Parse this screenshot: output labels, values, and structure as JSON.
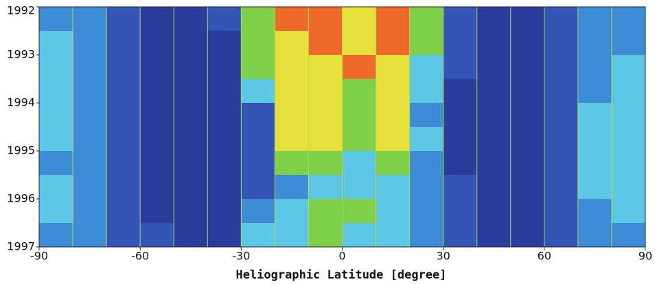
{
  "chart_data": {
    "type": "heatmap",
    "xlabel": "Heliographic Latitude [degree]",
    "xlim": [
      -90,
      90
    ],
    "xticks": [
      -90,
      -60,
      -30,
      0,
      30,
      60,
      90
    ],
    "xgrid": [
      -80,
      -70,
      -60,
      -50,
      -40,
      -30,
      -20,
      -10,
      0,
      10,
      20,
      30,
      40,
      50,
      60,
      70,
      80
    ],
    "grid_color": "#b9d84a",
    "ylim": [
      1997,
      1992
    ],
    "yticks": [
      1992,
      1993,
      1994,
      1995,
      1996,
      1997
    ],
    "xbins": [
      -90,
      -80,
      -70,
      -60,
      -50,
      -40,
      -30,
      -20,
      -10,
      0,
      10,
      20,
      30,
      40,
      50,
      60,
      70,
      80,
      90
    ],
    "ybins": [
      1992,
      1992.5,
      1993,
      1993.5,
      1994,
      1994.5,
      1995,
      1995.5,
      1996,
      1996.5,
      1997
    ],
    "colorscale": [
      "#2b3c9a",
      "#3356b6",
      "#3d8dd6",
      "#5cc8e6",
      "#7fd048",
      "#e6e03a",
      "#ef6a2a"
    ],
    "values": [
      [
        2,
        2,
        1,
        0,
        0,
        1,
        4,
        6,
        6,
        5,
        6,
        4,
        1,
        0,
        0,
        1,
        2,
        2
      ],
      [
        3,
        2,
        1,
        0,
        0,
        0,
        4,
        5,
        6,
        5,
        6,
        4,
        1,
        0,
        0,
        1,
        2,
        2
      ],
      [
        3,
        2,
        1,
        0,
        0,
        0,
        4,
        5,
        5,
        6,
        5,
        3,
        1,
        0,
        0,
        1,
        2,
        3
      ],
      [
        3,
        2,
        1,
        0,
        0,
        0,
        3,
        5,
        5,
        4,
        5,
        3,
        0,
        0,
        0,
        1,
        2,
        3
      ],
      [
        3,
        2,
        1,
        0,
        0,
        0,
        1,
        5,
        5,
        4,
        5,
        2,
        0,
        0,
        0,
        1,
        3,
        3
      ],
      [
        3,
        2,
        1,
        0,
        0,
        0,
        1,
        5,
        5,
        4,
        5,
        3,
        0,
        0,
        0,
        1,
        3,
        3
      ],
      [
        2,
        2,
        1,
        0,
        0,
        0,
        1,
        4,
        4,
        3,
        4,
        2,
        0,
        0,
        0,
        1,
        3,
        3
      ],
      [
        3,
        2,
        1,
        0,
        0,
        0,
        1,
        2,
        3,
        3,
        3,
        2,
        1,
        0,
        0,
        1,
        3,
        3
      ],
      [
        3,
        2,
        1,
        0,
        0,
        0,
        2,
        3,
        4,
        4,
        3,
        2,
        1,
        0,
        0,
        1,
        2,
        3
      ],
      [
        2,
        2,
        1,
        1,
        0,
        0,
        3,
        3,
        4,
        3,
        3,
        2,
        1,
        0,
        0,
        1,
        2,
        2
      ]
    ]
  }
}
